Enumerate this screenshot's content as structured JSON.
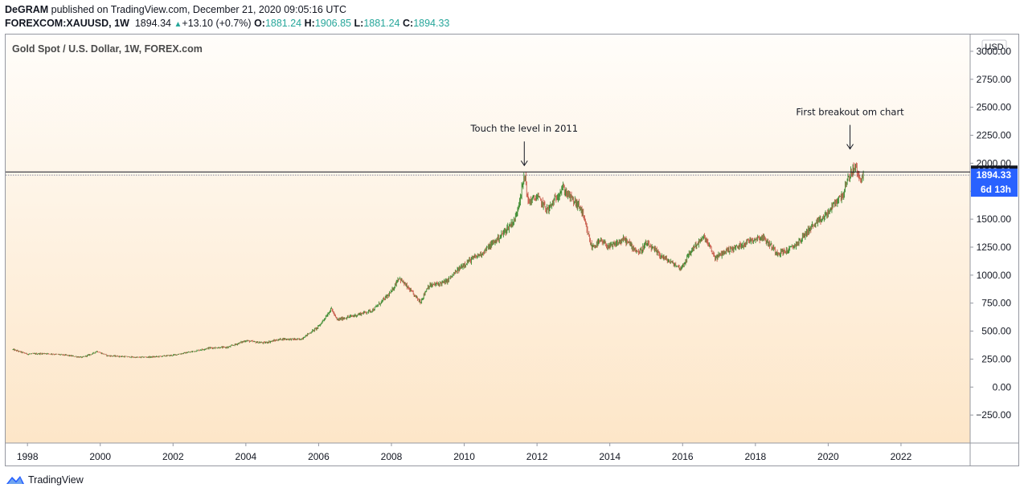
{
  "header": {
    "author": "DeGRAM",
    "published": "published on TradingView.com, December 21, 2020 09:05:16 UTC",
    "symbol": "FOREXCOM:XAUUSD, 1W",
    "last": "1894.34",
    "change": "+13.10 (+0.7%)",
    "o_label": "O:",
    "o_value": "1881.24",
    "h_label": "H:",
    "h_value": "1906.85",
    "l_label": "L:",
    "l_value": "1881.24",
    "c_label": "C:",
    "c_value": "1894.33"
  },
  "footer": {
    "brand": "TradingView"
  },
  "colors": {
    "up": "#26a69a",
    "down": "#ef5350",
    "candle_up": "#3a8a2f",
    "candle_down": "#c85a4a",
    "price_tag": "#2962ff",
    "level_tag": "#131722",
    "bg_top": "#fffdfa",
    "bg_bottom": "#fde6c8"
  },
  "chart_data": {
    "type": "line",
    "title": "Gold Spot / U.S. Dollar, 1W, FOREX.com",
    "currency": "USD",
    "xlim": [
      1997.4,
      2023.9
    ],
    "ylim": [
      -500,
      3150
    ],
    "xticks": [
      "1998",
      "2000",
      "2002",
      "2004",
      "2006",
      "2008",
      "2010",
      "2012",
      "2014",
      "2016",
      "2018",
      "2020",
      "2022"
    ],
    "yticks": [
      "3000.00",
      "2750.00",
      "2500.00",
      "2250.00",
      "2000.00",
      "1750.00",
      "1500.00",
      "1250.00",
      "1000.00",
      "750.00",
      "500.00",
      "250.00",
      "0.00",
      "−250.00"
    ],
    "series": [
      {
        "x": [
          1997.6,
          1998.0,
          1998.5,
          1999.0,
          1999.5,
          1999.8,
          1999.9,
          2000.2,
          2000.5,
          2001.0,
          2001.5,
          2002.0,
          2002.5,
          2003.0,
          2003.5,
          2004.0,
          2004.3,
          2004.5,
          2005.0,
          2005.5,
          2006.0,
          2006.35,
          2006.5,
          2007.0,
          2007.5,
          2008.0,
          2008.2,
          2008.6,
          2008.8,
          2009.0,
          2009.5,
          2010.0,
          2010.5,
          2011.0,
          2011.4,
          2011.67,
          2011.75,
          2012.0,
          2012.3,
          2012.7,
          2012.9,
          2013.2,
          2013.5,
          2013.75,
          2014.0,
          2014.4,
          2014.8,
          2015.0,
          2015.5,
          2015.95,
          2016.3,
          2016.6,
          2016.9,
          2017.2,
          2017.5,
          2017.9,
          2018.2,
          2018.6,
          2018.9,
          2019.2,
          2019.5,
          2019.8,
          2020.0,
          2020.2,
          2020.4,
          2020.6,
          2020.75,
          2020.85,
          2020.97
        ],
        "values": [
          335,
          295,
          300,
          287,
          265,
          300,
          320,
          280,
          275,
          265,
          270,
          285,
          315,
          350,
          355,
          415,
          400,
          395,
          430,
          425,
          540,
          700,
          600,
          640,
          690,
          850,
          980,
          830,
          760,
          900,
          940,
          1100,
          1200,
          1350,
          1500,
          1900,
          1650,
          1700,
          1580,
          1780,
          1700,
          1600,
          1250,
          1300,
          1250,
          1320,
          1200,
          1280,
          1150,
          1060,
          1250,
          1340,
          1150,
          1220,
          1250,
          1320,
          1340,
          1200,
          1220,
          1300,
          1420,
          1490,
          1560,
          1650,
          1720,
          1900,
          1970,
          1860,
          1894
        ]
      }
    ],
    "price_level": "1922.01",
    "last_price": "1894.33",
    "countdown": "6d 13h",
    "annotations": [
      {
        "text": "Touch the level in 2011",
        "x": 2011.65,
        "y": 1922
      },
      {
        "text": "First breakout om chart",
        "x": 2020.6,
        "y": 2070
      }
    ]
  }
}
